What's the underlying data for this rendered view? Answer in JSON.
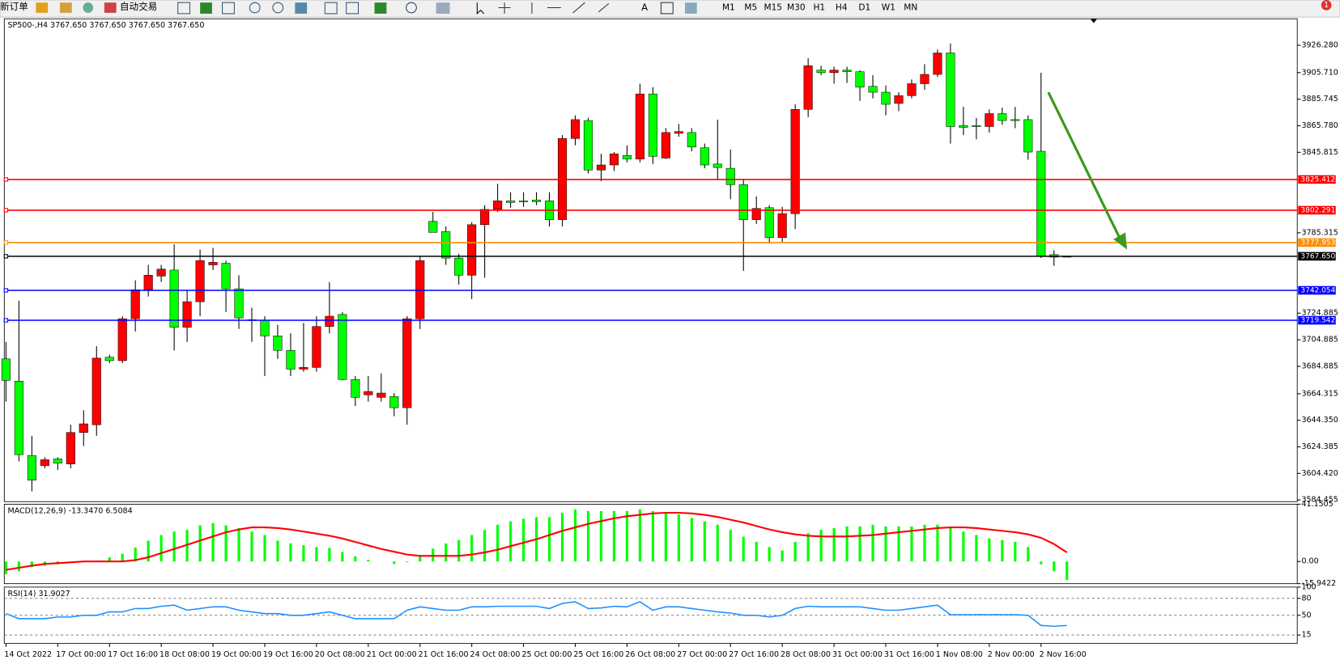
{
  "toolbar": {
    "new_order": "新订单",
    "auto_trading": "自动交易",
    "text_tool": "A",
    "timeframes": [
      "M1",
      "M5",
      "M15",
      "M30",
      "H1",
      "H4",
      "D1",
      "W1",
      "MN"
    ],
    "badge": "1"
  },
  "chart_data": [
    {
      "type": "candlestick",
      "title": "SP500-,H4  3767.650 3767.650 3767.650 3767.650",
      "categories": [
        "14 Oct 2022",
        null,
        null,
        null,
        "17 Oct 00:00",
        null,
        null,
        null,
        "17 Oct 16:00",
        null,
        null,
        null,
        "18 Oct 08:00",
        null,
        null,
        null,
        "19 Oct 00:00",
        null,
        null,
        null,
        "19 Oct 16:00",
        null,
        null,
        null,
        "20 Oct 08:00",
        null,
        null,
        null,
        "21 Oct 00:00",
        null,
        null,
        null,
        "21 Oct 16:00",
        null,
        null,
        null,
        "24 Oct 08:00",
        null,
        null,
        null,
        "25 Oct 00:00",
        null,
        null,
        null,
        "25 Oct 16:00",
        null,
        null,
        null,
        "26 Oct 08:00",
        null,
        null,
        null,
        "27 Oct 00:00",
        null,
        null,
        null,
        "27 Oct 16:00",
        null,
        null,
        null,
        "28 Oct 08:00",
        null,
        null,
        null,
        "31 Oct 00:00",
        null,
        null,
        null,
        "31 Oct 16:00",
        null,
        null,
        null,
        "1 Nov 08:00",
        null,
        null,
        null,
        "2 Nov 00:00",
        null,
        null,
        null,
        "2 Nov 16:00",
        null,
        null
      ],
      "open": [
        3690.5,
        3673.8,
        3617.9,
        3610.2,
        3615.3,
        3611.5,
        3635.2,
        3641.0,
        3691.8,
        3689.2,
        3720.7,
        3742.5,
        3752.8,
        3757.3,
        3714.3,
        3733.5,
        3761.2,
        3762.4,
        3743.2,
        3720.0,
        3719.4,
        3707.8,
        3696.9,
        3682.8,
        3684.1,
        3714.9,
        3723.9,
        3675.0,
        3663.5,
        3661.6,
        3662.2,
        3653.8,
        3720.7,
        3793.9,
        3786.2,
        3766.3,
        3753.4,
        3791.4,
        3802.9,
        3809.3,
        3809.3,
        3810.0,
        3809.3,
        3795.2,
        3856.2,
        3869.7,
        3832.5,
        3836.3,
        3843.4,
        3840.8,
        3889.7,
        3841.5,
        3860.1,
        3860.7,
        3849.2,
        3837.0,
        3833.8,
        3821.5,
        3795.2,
        3804.2,
        3781.7,
        3799.7,
        3878.1,
        3907.6,
        3905.7,
        3907.6,
        3906.4,
        3895.4,
        3891.0,
        3882.6,
        3888.4,
        3897.4,
        3904.4,
        3920.5,
        3865.9,
        3865.9,
        3865.2,
        3874.9,
        3870.4,
        3870.4,
        3846.6,
        3768.9,
        3767.65
      ],
      "high": [
        3703.3,
        3734.2,
        3632.7,
        3616.6,
        3616.6,
        3641.0,
        3651.9,
        3700.1,
        3693.7,
        3722.6,
        3749.6,
        3761.2,
        3761.2,
        3776.6,
        3741.9,
        3772.7,
        3774.0,
        3764.4,
        3753.4,
        3729.0,
        3722.6,
        3716.2,
        3709.8,
        3717.5,
        3722.6,
        3748.3,
        3725.8,
        3677.6,
        3677.6,
        3679.6,
        3664.8,
        3722.6,
        3767.6,
        3801.0,
        3790.1,
        3769.5,
        3793.3,
        3806.1,
        3822.2,
        3815.8,
        3815.8,
        3815.8,
        3815.8,
        3858.8,
        3873.6,
        3871.7,
        3844.7,
        3846.0,
        3851.1,
        3897.4,
        3894.8,
        3864.0,
        3867.2,
        3864.0,
        3852.4,
        3870.4,
        3847.9,
        3825.4,
        3812.6,
        3806.1,
        3804.8,
        3881.9,
        3916.6,
        3910.9,
        3910.2,
        3910.2,
        3907.6,
        3903.8,
        3896.1,
        3891.0,
        3900.6,
        3912.1,
        3923.1,
        3927.6,
        3880.0,
        3871.7,
        3878.1,
        3879.4,
        3880.0,
        3873.6,
        3905.7,
        3772.1,
        3767.65
      ],
      "low": [
        3658.4,
        3613.4,
        3590.9,
        3608.2,
        3607.0,
        3608.2,
        3625.0,
        3632.7,
        3687.3,
        3687.3,
        3711.1,
        3737.4,
        3748.3,
        3696.9,
        3703.3,
        3722.6,
        3757.3,
        3725.8,
        3713.0,
        3703.3,
        3677.6,
        3690.5,
        3677.6,
        3680.9,
        3680.9,
        3709.8,
        3674.4,
        3655.1,
        3658.4,
        3658.4,
        3647.4,
        3641.0,
        3713.0,
        3785.6,
        3761.2,
        3746.4,
        3735.5,
        3751.5,
        3801.0,
        3804.2,
        3804.8,
        3806.1,
        3790.1,
        3790.1,
        3851.1,
        3829.9,
        3824.1,
        3831.8,
        3838.3,
        3838.3,
        3837.0,
        3840.8,
        3857.5,
        3846.6,
        3833.8,
        3825.4,
        3810.6,
        3756.7,
        3792.0,
        3777.2,
        3778.5,
        3788.1,
        3872.3,
        3903.8,
        3897.4,
        3898.0,
        3884.5,
        3886.4,
        3873.6,
        3876.8,
        3886.4,
        3892.9,
        3902.5,
        3852.4,
        3858.8,
        3855.6,
        3860.7,
        3866.5,
        3864.0,
        3840.2,
        3766.3,
        3760.5,
        3767.65
      ],
      "close": [
        3674.4,
        3618.5,
        3599.3,
        3614.7,
        3612.1,
        3635.2,
        3641.7,
        3691.1,
        3689.2,
        3720.7,
        3742.5,
        3753.4,
        3758.0,
        3714.3,
        3733.5,
        3764.4,
        3763.1,
        3743.2,
        3721.3,
        3719.4,
        3707.8,
        3696.9,
        3682.8,
        3684.1,
        3714.9,
        3722.6,
        3675.0,
        3661.6,
        3666.0,
        3664.8,
        3653.8,
        3720.7,
        3764.4,
        3785.6,
        3766.3,
        3753.4,
        3791.4,
        3802.9,
        3809.3,
        3808.1,
        3808.7,
        3808.7,
        3795.2,
        3856.2,
        3870.4,
        3832.5,
        3836.3,
        3844.7,
        3840.8,
        3889.7,
        3842.8,
        3860.7,
        3861.4,
        3849.8,
        3836.3,
        3834.4,
        3821.5,
        3795.2,
        3803.6,
        3781.7,
        3799.7,
        3878.1,
        3910.9,
        3905.7,
        3907.6,
        3906.4,
        3894.8,
        3891.0,
        3881.9,
        3888.4,
        3897.4,
        3904.4,
        3920.5,
        3865.2,
        3864.6,
        3865.2,
        3874.9,
        3869.7,
        3869.7,
        3846.0,
        3767.6,
        3767.0,
        3767.65
      ],
      "up_color": "#ff0000",
      "down_color": "#00ff00",
      "ylim": [
        3583.2,
        3946.2
      ],
      "yticks": [
        {
          "value": 3926.28,
          "label": "3926.280"
        },
        {
          "value": 3905.71,
          "label": "3905.710"
        },
        {
          "value": 3885.745,
          "label": "3885.745"
        },
        {
          "value": 3865.78,
          "label": "3865.780"
        },
        {
          "value": 3845.815,
          "label": "3845.815"
        },
        {
          "value": 3785.315,
          "label": "3785.315"
        },
        {
          "value": 3724.885,
          "label": "3724.885"
        },
        {
          "value": 3704.885,
          "label": "3704.885"
        },
        {
          "value": 3684.885,
          "label": "3684.885"
        },
        {
          "value": 3664.315,
          "label": "3664.315"
        },
        {
          "value": 3644.35,
          "label": "3644.350"
        },
        {
          "value": 3624.385,
          "label": "3624.385"
        },
        {
          "value": 3604.42,
          "label": "3604.420"
        },
        {
          "value": 3584.455,
          "label": "3584.455"
        }
      ],
      "hlines": [
        {
          "value": 3825.412,
          "label": "3825.412",
          "color": "#ff0000"
        },
        {
          "value": 3802.291,
          "label": "3802.291",
          "color": "#ff0000"
        },
        {
          "value": 3777.953,
          "label": "3777.953",
          "color": "#ff8c00"
        },
        {
          "value": 3767.65,
          "label": "3767.650",
          "color": "#000000"
        },
        {
          "value": 3742.054,
          "label": "3742.054",
          "color": "#0000ff"
        },
        {
          "value": 3719.542,
          "label": "3719.542",
          "color": "#0000ff"
        }
      ]
    },
    {
      "type": "macd",
      "title": "MACD(12,26,9) -13.3470 6.5084",
      "color": "#00ff00",
      "signal_color": "#ff0000",
      "histogram": [
        -9,
        -7,
        -4,
        -3,
        -2,
        -1,
        -0.6,
        0.6,
        3,
        5.5,
        10,
        15,
        19,
        21.5,
        22.7,
        26,
        27.6,
        26,
        24,
        21.5,
        19,
        15,
        13,
        11.7,
        10.4,
        9.8,
        6.8,
        3.7,
        1.2,
        0,
        -1.8,
        -0.6,
        4.3,
        9.2,
        12.9,
        15.4,
        19,
        22.7,
        26.4,
        28.9,
        30.7,
        31.9,
        31.9,
        35,
        37.5,
        36.2,
        36.2,
        36.2,
        36.2,
        37.5,
        36.2,
        35,
        33.8,
        31.3,
        28.9,
        26.4,
        22.7,
        17.8,
        14.1,
        10.4,
        8,
        14.1,
        20.3,
        22.7,
        24,
        25.2,
        25.2,
        26.4,
        25.2,
        25.2,
        25.2,
        26.4,
        26.4,
        24,
        21.5,
        19,
        16.6,
        15.4,
        14.1,
        10.4,
        -2,
        -7,
        -13.347
      ],
      "signal": [
        -6,
        -4.5,
        -3,
        -1.8,
        -1.2,
        -0.6,
        0,
        0,
        0,
        0,
        1,
        3,
        6,
        9,
        12,
        15,
        18,
        21,
        23,
        24.5,
        24.5,
        24,
        23,
        21.5,
        20,
        18.5,
        16.5,
        14,
        11.5,
        9,
        7,
        5,
        4,
        4,
        4,
        4,
        5,
        6.5,
        8.5,
        11,
        13.5,
        16,
        19,
        22,
        24.5,
        27,
        29,
        31,
        32.5,
        33.5,
        34.5,
        35,
        35,
        34.5,
        33.5,
        32,
        30,
        28,
        25.5,
        23,
        21,
        19.5,
        18.5,
        18,
        18,
        18,
        18.5,
        19,
        20,
        21,
        22,
        23,
        24,
        24.5,
        24.5,
        24,
        23,
        22,
        21,
        19.5,
        17,
        12.5,
        6.5084
      ],
      "ylim": [
        -15.9422,
        41.1505
      ],
      "yticks": [
        41.1505,
        {
          "value": 0,
          "label": "0.00"
        },
        -15.9422
      ]
    },
    {
      "type": "rsi",
      "title": "RSI(14) 31.9027",
      "color": "#1e90ff",
      "values": [
        53,
        44,
        44,
        44,
        47,
        47,
        50,
        50,
        56,
        56,
        62,
        62,
        66,
        68,
        59,
        62,
        65,
        65,
        59,
        56,
        53,
        53,
        50,
        50,
        53,
        56,
        50,
        44,
        44,
        44,
        44,
        59,
        65,
        62,
        59,
        59,
        65,
        65,
        66,
        66,
        66,
        66,
        62,
        71,
        74,
        62,
        63,
        66,
        65,
        74,
        59,
        65,
        65,
        62,
        59,
        56,
        54,
        50,
        50,
        47,
        50,
        62,
        66,
        65,
        65,
        65,
        65,
        62,
        59,
        59,
        62,
        65,
        68,
        51,
        51,
        51,
        51,
        51,
        51,
        50,
        32,
        30.5,
        31.9027
      ],
      "ylim": [
        0,
        100
      ],
      "yticks": [
        100,
        80,
        50,
        15
      ]
    }
  ]
}
